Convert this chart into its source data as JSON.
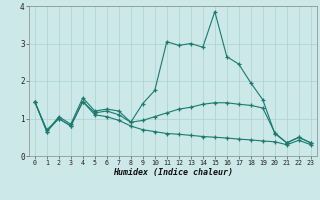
{
  "xlabel": "Humidex (Indice chaleur)",
  "bg_color": "#cce8e8",
  "grid_color": "#aad0d0",
  "line_color": "#1a7a6e",
  "xlim": [
    -0.5,
    23.5
  ],
  "ylim": [
    0,
    4
  ],
  "xticks": [
    0,
    1,
    2,
    3,
    4,
    5,
    6,
    7,
    8,
    9,
    10,
    11,
    12,
    13,
    14,
    15,
    16,
    17,
    18,
    19,
    20,
    21,
    22,
    23
  ],
  "yticks": [
    0,
    1,
    2,
    3,
    4
  ],
  "series": {
    "line1": {
      "x": [
        0,
        1,
        2,
        3,
        4,
        5,
        6,
        7,
        8,
        9,
        10,
        11,
        12,
        13,
        14,
        15,
        16,
        17,
        18,
        19,
        20,
        21,
        22,
        23
      ],
      "y": [
        1.45,
        0.65,
        1.05,
        0.85,
        1.55,
        1.2,
        1.25,
        1.2,
        0.9,
        1.4,
        1.75,
        3.05,
        2.95,
        3.0,
        2.9,
        3.85,
        2.65,
        2.45,
        1.95,
        1.5,
        0.6,
        0.35,
        0.5,
        0.35
      ]
    },
    "line2": {
      "x": [
        0,
        1,
        2,
        3,
        4,
        5,
        6,
        7,
        8,
        9,
        10,
        11,
        12,
        13,
        14,
        15,
        16,
        17,
        18,
        19,
        20,
        21,
        22,
        23
      ],
      "y": [
        1.45,
        0.7,
        1.0,
        0.8,
        1.45,
        1.15,
        1.2,
        1.1,
        0.9,
        0.95,
        1.05,
        1.15,
        1.25,
        1.3,
        1.38,
        1.42,
        1.42,
        1.38,
        1.35,
        1.28,
        0.62,
        0.35,
        0.5,
        0.35
      ]
    },
    "line3": {
      "x": [
        0,
        1,
        2,
        3,
        4,
        5,
        6,
        7,
        8,
        9,
        10,
        11,
        12,
        13,
        14,
        15,
        16,
        17,
        18,
        19,
        20,
        21,
        22,
        23
      ],
      "y": [
        1.45,
        0.65,
        1.0,
        0.8,
        1.45,
        1.1,
        1.05,
        0.95,
        0.8,
        0.7,
        0.65,
        0.6,
        0.58,
        0.55,
        0.52,
        0.5,
        0.48,
        0.45,
        0.43,
        0.4,
        0.38,
        0.3,
        0.42,
        0.3
      ]
    }
  }
}
